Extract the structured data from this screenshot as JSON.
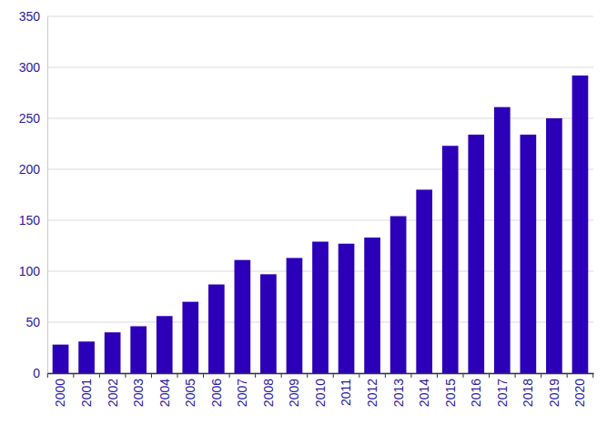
{
  "chart_data": {
    "type": "bar",
    "categories": [
      "2000",
      "2001",
      "2002",
      "2003",
      "2004",
      "2005",
      "2006",
      "2007",
      "2008",
      "2009",
      "2010",
      "2011",
      "2012",
      "2013",
      "2014",
      "2015",
      "2016",
      "2017",
      "2018",
      "2019",
      "2020"
    ],
    "values": [
      28,
      31,
      40,
      46,
      56,
      70,
      87,
      111,
      97,
      113,
      129,
      127,
      133,
      154,
      180,
      223,
      234,
      261,
      234,
      250,
      292
    ],
    "color": "#2c00b8",
    "ylim": [
      0,
      350
    ],
    "yticks": [
      0,
      50,
      100,
      150,
      200,
      250,
      300,
      350
    ],
    "grid": true
  }
}
